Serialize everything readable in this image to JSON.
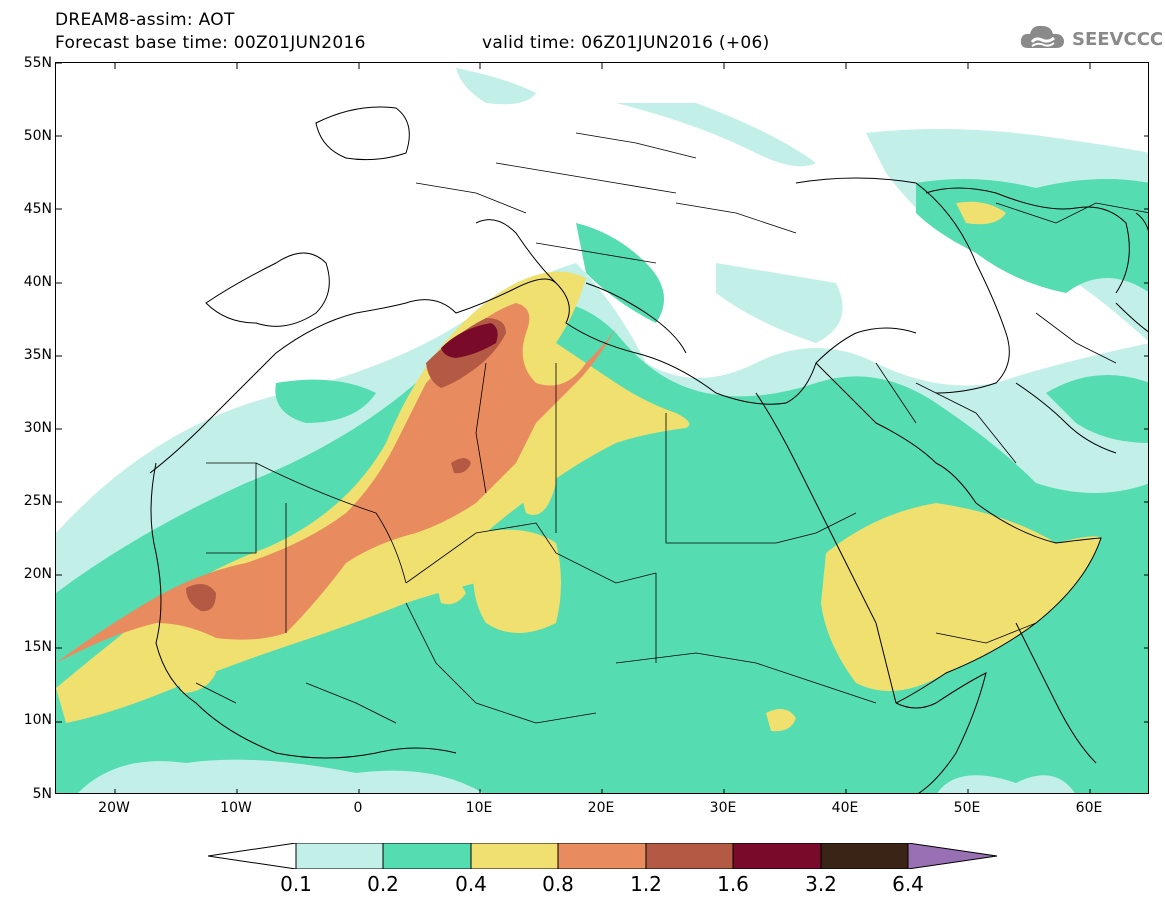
{
  "header": {
    "title_line1": "DREAM8-assim: AOT",
    "title_line2": "Forecast base time: 00Z01JUN2016",
    "valid_time": "valid time: 06Z01JUN2016 (+06)"
  },
  "logo": {
    "text": "SEEVCCC",
    "icon": "cloud-icon"
  },
  "map": {
    "lat_labels": [
      "55N",
      "50N",
      "45N",
      "40N",
      "35N",
      "30N",
      "25N",
      "20N",
      "15N",
      "10N",
      "5N"
    ],
    "lon_labels": [
      "20W",
      "10W",
      "0",
      "10E",
      "20E",
      "30E",
      "40E",
      "50E",
      "60E"
    ],
    "field": "AOT",
    "colors": {
      "c01": "#c2f0e8",
      "c02": "#55dcb0",
      "c04": "#f0e070",
      "c08": "#e88c60",
      "c12": "#b45a44",
      "c16": "#7a0a2a",
      "c32": "#3a2416",
      "c64": "#9a70b4"
    }
  },
  "colorbar": {
    "labels": [
      "0.1",
      "0.2",
      "0.4",
      "0.8",
      "1.2",
      "1.6",
      "3.2",
      "6.4"
    ],
    "colors": [
      "#c2f0e8",
      "#55dcb0",
      "#f0e070",
      "#e88c60",
      "#b45a44",
      "#7a0a2a",
      "#3a2416"
    ],
    "over_color": "#9a70b4",
    "under_color": "#ffffff"
  }
}
